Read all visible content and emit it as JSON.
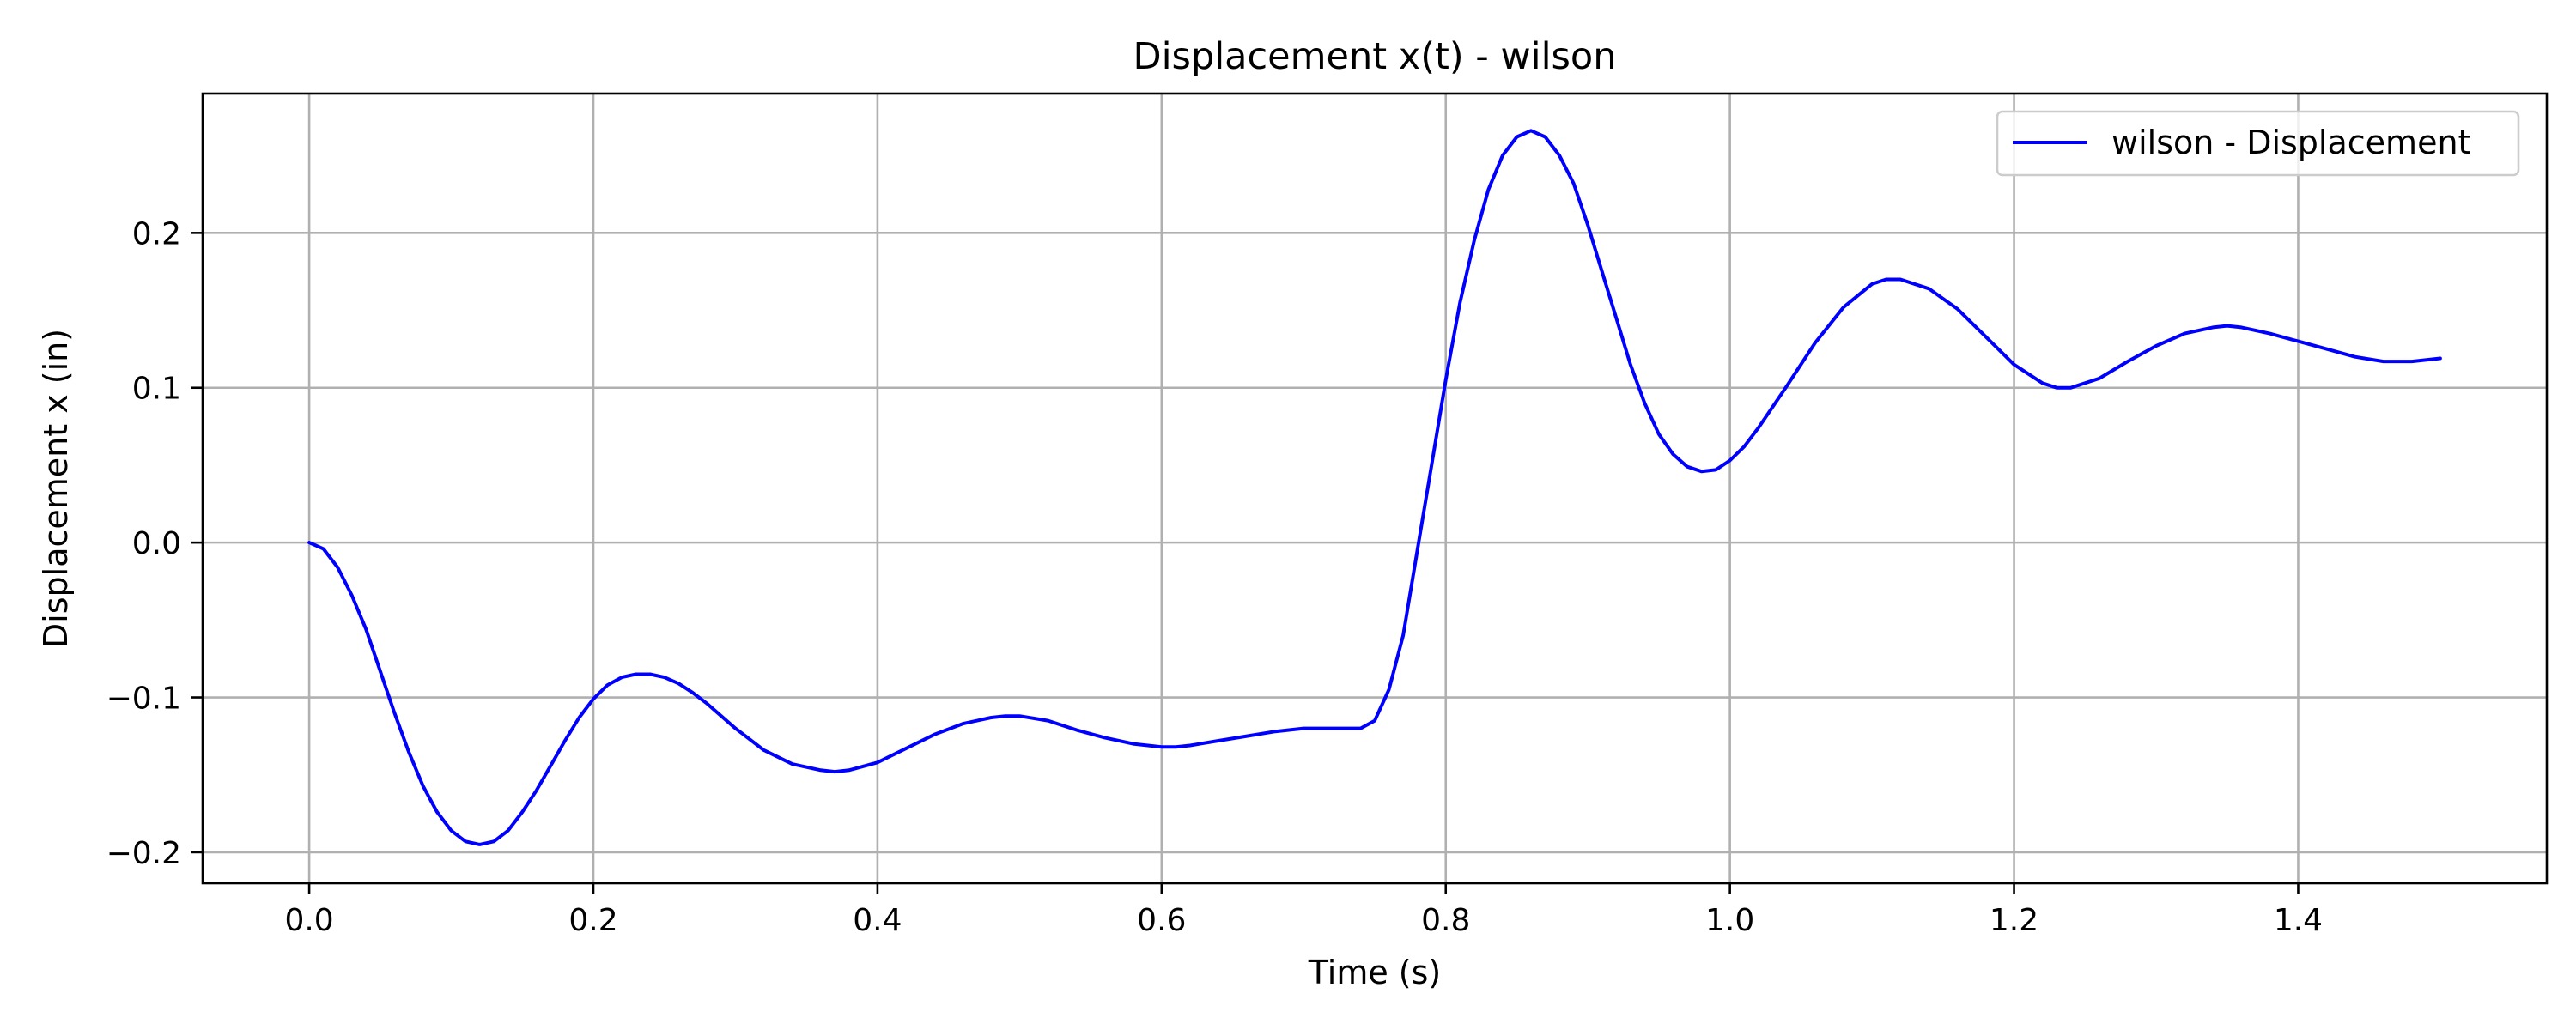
{
  "chart_data": {
    "type": "line",
    "title": "Displacement x(t) - wilson",
    "xlabel": "Time (s)",
    "ylabel": "Displacement x (in)",
    "xlim": [
      -0.075,
      1.575
    ],
    "ylim": [
      -0.22,
      0.29
    ],
    "xticks": [
      0.0,
      0.2,
      0.4,
      0.6,
      0.8,
      1.0,
      1.2,
      1.4
    ],
    "xtick_labels": [
      "0.0",
      "0.2",
      "0.4",
      "0.6",
      "0.8",
      "1.0",
      "1.2",
      "1.4"
    ],
    "yticks": [
      -0.2,
      -0.1,
      0.0,
      0.1,
      0.2
    ],
    "ytick_labels": [
      "−0.2",
      "−0.1",
      "0.0",
      "0.1",
      "0.2"
    ],
    "grid": true,
    "legend_position": "top-right",
    "series": [
      {
        "name": "wilson - Displacement",
        "color": "#0000ff",
        "x": [
          0.0,
          0.01,
          0.02,
          0.03,
          0.04,
          0.05,
          0.06,
          0.07,
          0.08,
          0.09,
          0.1,
          0.11,
          0.12,
          0.13,
          0.14,
          0.15,
          0.16,
          0.17,
          0.18,
          0.19,
          0.2,
          0.21,
          0.22,
          0.23,
          0.24,
          0.25,
          0.26,
          0.27,
          0.28,
          0.3,
          0.32,
          0.34,
          0.36,
          0.37,
          0.38,
          0.4,
          0.42,
          0.44,
          0.46,
          0.48,
          0.49,
          0.5,
          0.52,
          0.54,
          0.56,
          0.58,
          0.6,
          0.61,
          0.62,
          0.64,
          0.66,
          0.68,
          0.7,
          0.72,
          0.74,
          0.75,
          0.76,
          0.77,
          0.78,
          0.79,
          0.8,
          0.81,
          0.82,
          0.83,
          0.84,
          0.85,
          0.86,
          0.87,
          0.88,
          0.89,
          0.9,
          0.91,
          0.92,
          0.93,
          0.94,
          0.95,
          0.96,
          0.97,
          0.98,
          0.99,
          1.0,
          1.01,
          1.02,
          1.04,
          1.06,
          1.08,
          1.1,
          1.11,
          1.12,
          1.14,
          1.16,
          1.18,
          1.2,
          1.22,
          1.23,
          1.24,
          1.26,
          1.28,
          1.3,
          1.32,
          1.34,
          1.35,
          1.36,
          1.38,
          1.4,
          1.42,
          1.44,
          1.46,
          1.48,
          1.5
        ],
        "y": [
          0.0,
          -0.004,
          -0.016,
          -0.034,
          -0.056,
          -0.083,
          -0.11,
          -0.135,
          -0.157,
          -0.174,
          -0.186,
          -0.193,
          -0.195,
          -0.193,
          -0.186,
          -0.174,
          -0.16,
          -0.144,
          -0.128,
          -0.113,
          -0.101,
          -0.092,
          -0.087,
          -0.085,
          -0.085,
          -0.087,
          -0.091,
          -0.097,
          -0.104,
          -0.12,
          -0.134,
          -0.143,
          -0.147,
          -0.148,
          -0.147,
          -0.142,
          -0.133,
          -0.124,
          -0.117,
          -0.113,
          -0.112,
          -0.112,
          -0.115,
          -0.121,
          -0.126,
          -0.13,
          -0.132,
          -0.132,
          -0.131,
          -0.128,
          -0.125,
          -0.122,
          -0.12,
          -0.12,
          -0.12,
          -0.115,
          -0.095,
          -0.06,
          -0.005,
          0.05,
          0.105,
          0.155,
          0.195,
          0.228,
          0.25,
          0.262,
          0.266,
          0.262,
          0.25,
          0.232,
          0.205,
          0.175,
          0.145,
          0.115,
          0.09,
          0.07,
          0.057,
          0.049,
          0.046,
          0.047,
          0.053,
          0.062,
          0.074,
          0.101,
          0.129,
          0.152,
          0.167,
          0.17,
          0.17,
          0.164,
          0.151,
          0.133,
          0.115,
          0.103,
          0.1,
          0.1,
          0.106,
          0.117,
          0.127,
          0.135,
          0.139,
          0.14,
          0.139,
          0.135,
          0.13,
          0.125,
          0.12,
          0.117,
          0.117,
          0.119
        ]
      }
    ]
  }
}
